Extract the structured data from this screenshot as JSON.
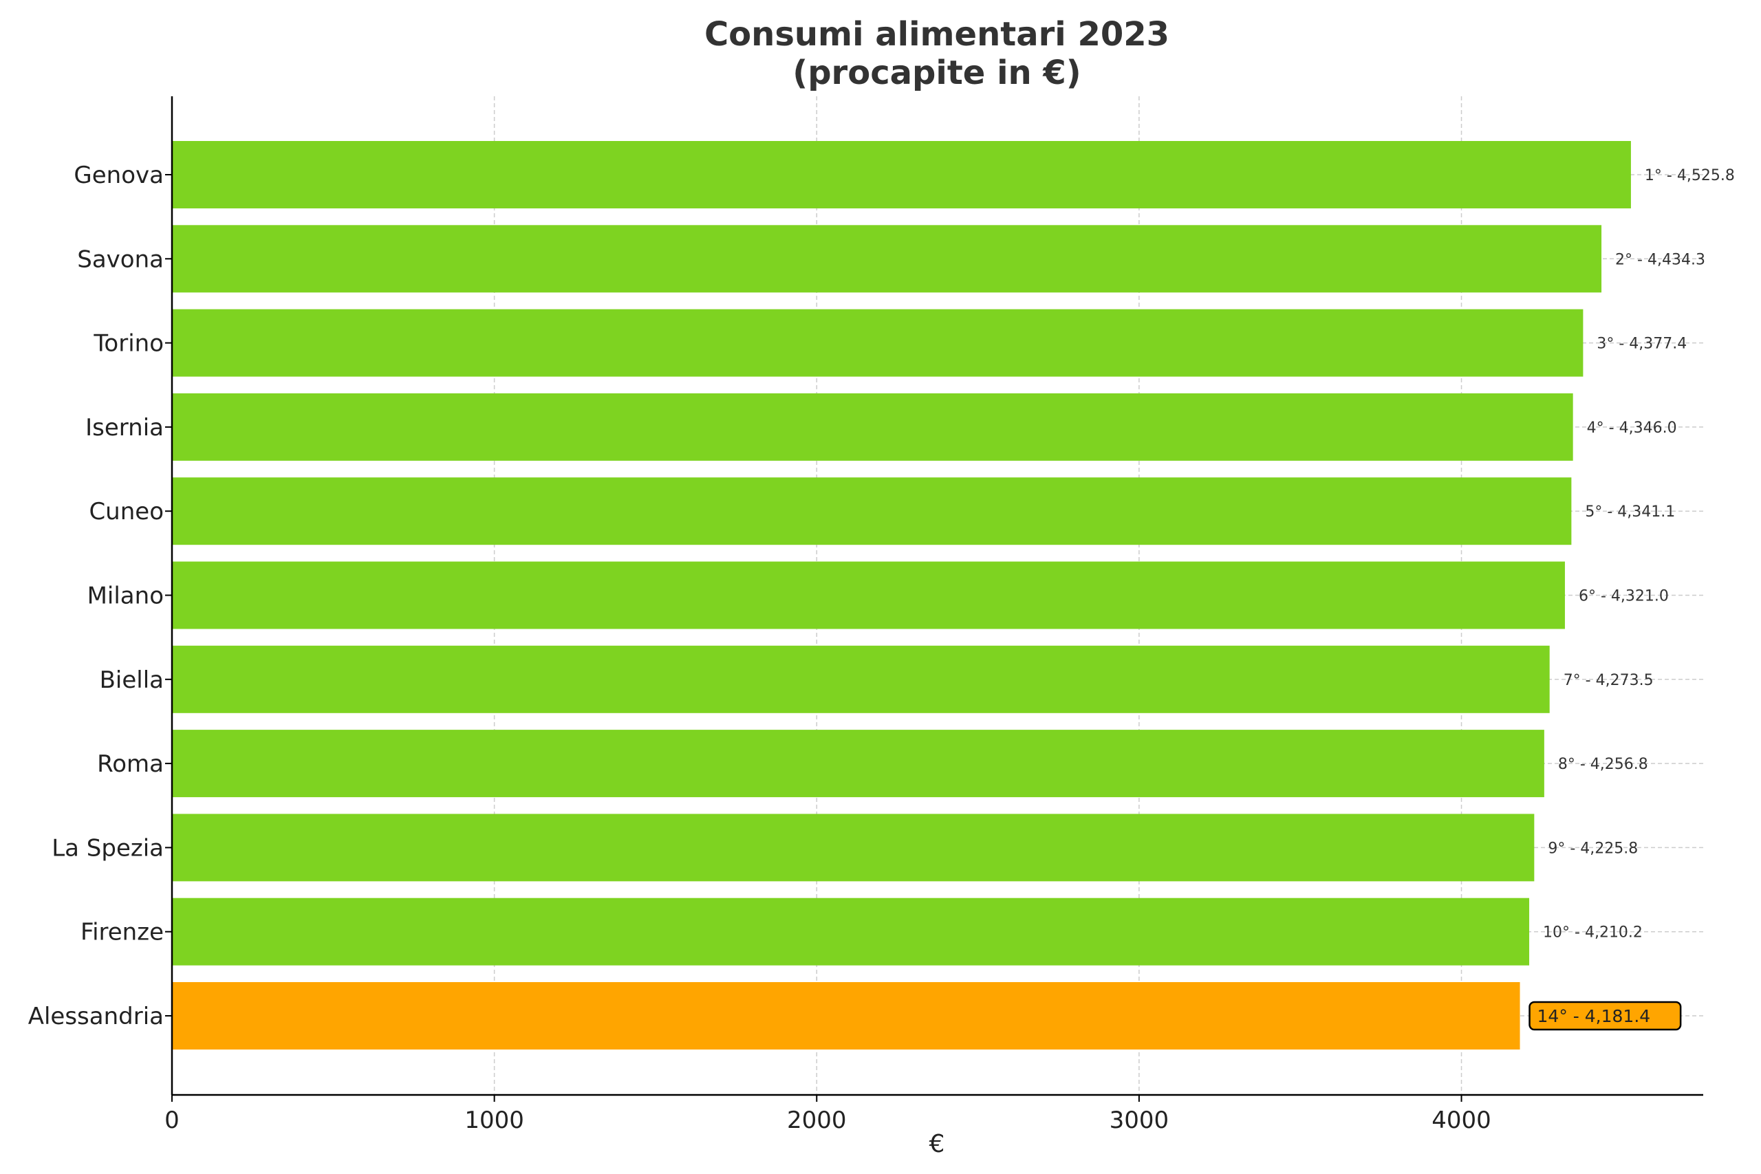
{
  "chart_data": {
    "type": "bar",
    "orientation": "horizontal",
    "title": "Consumi alimentari 2023",
    "subtitle": "(procapite in €)",
    "xlabel": "€",
    "ylabel": "",
    "xlim": [
      0,
      4750
    ],
    "xticks": [
      0,
      1000,
      2000,
      3000,
      4000
    ],
    "grid": true,
    "categories": [
      "Genova",
      "Savona",
      "Torino",
      "Isernia",
      "Cuneo",
      "Milano",
      "Biella",
      "Roma",
      "La Spezia",
      "Firenze",
      "Alessandria"
    ],
    "values": [
      4525.8,
      4434.3,
      4377.4,
      4346.0,
      4341.1,
      4321.0,
      4273.5,
      4256.8,
      4225.8,
      4210.2,
      4181.4
    ],
    "data_labels": [
      "1° - 4,525.8",
      "2° - 4,434.3",
      "3° - 4,377.4",
      "4° - 4,346.0",
      "5° - 4,341.1",
      "6° - 4,321.0",
      "7° - 4,273.5",
      "8° - 4,256.8",
      "9° - 4,225.8",
      "10° - 4,210.2",
      "14° - 4,181.4"
    ],
    "highlight_index": 10,
    "colors": {
      "bar": "#7ED321",
      "highlight": "#FFA500",
      "grid": "#cccccc",
      "axis": "#000000"
    }
  }
}
